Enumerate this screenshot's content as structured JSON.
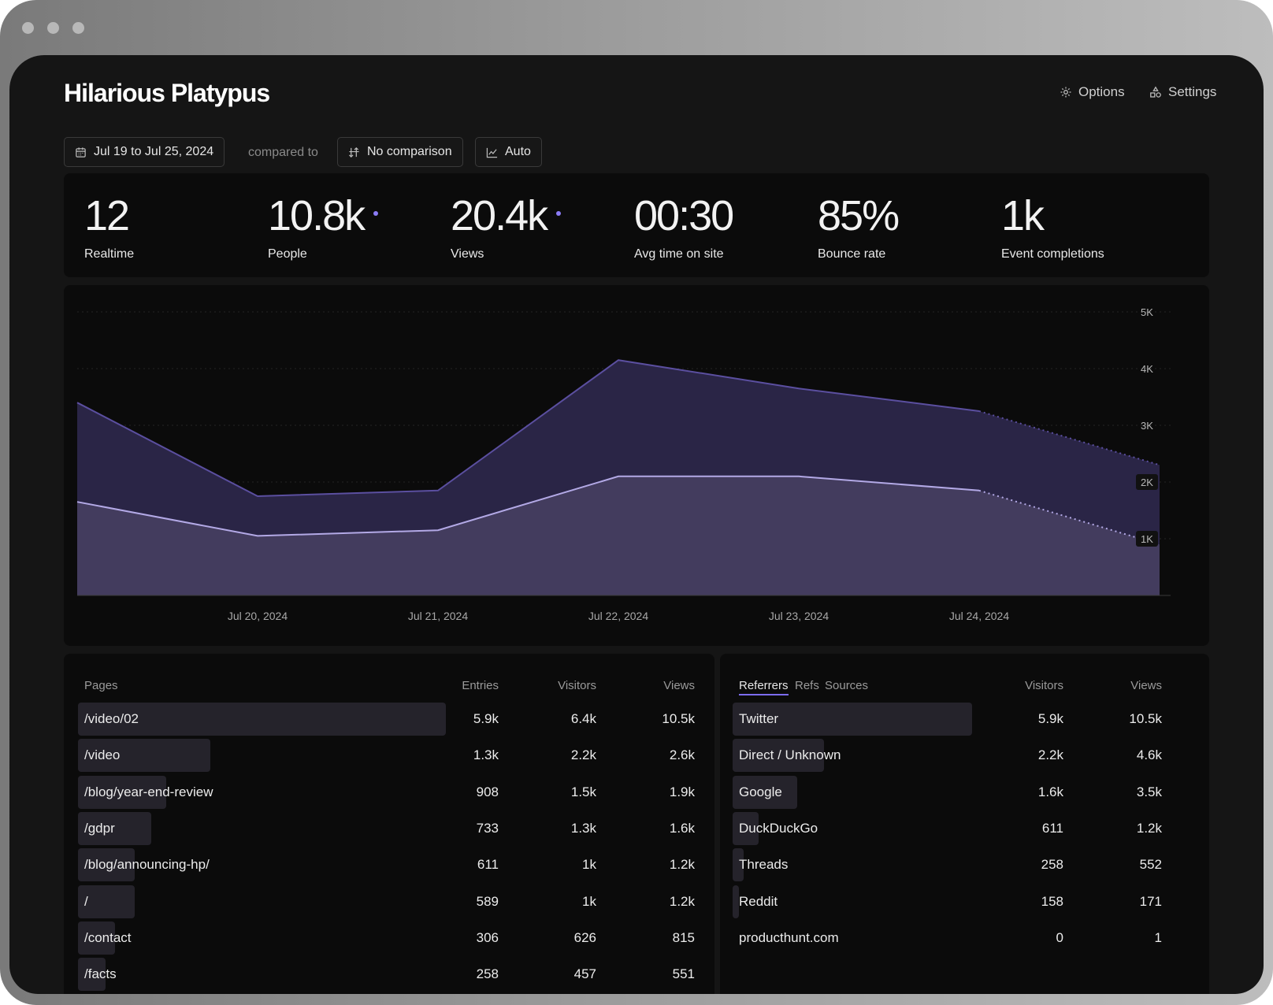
{
  "window": {
    "title": "Hilarious Platypus"
  },
  "header": {
    "options_label": "Options",
    "settings_label": "Settings"
  },
  "filters": {
    "date_range": "Jul 19 to Jul 25, 2024",
    "compared_to": "compared to",
    "comparison": "No comparison",
    "interval": "Auto"
  },
  "stats": [
    {
      "value": "12",
      "label": "Realtime",
      "marker": false
    },
    {
      "value": "10.8k",
      "label": "People",
      "marker": true
    },
    {
      "value": "20.4k",
      "label": "Views",
      "marker": true
    },
    {
      "value": "00:30",
      "label": "Avg time on site",
      "marker": false
    },
    {
      "value": "85%",
      "label": "Bounce rate",
      "marker": false
    },
    {
      "value": "1k",
      "label": "Event completions",
      "marker": false
    }
  ],
  "chart_data": {
    "type": "area",
    "x": [
      "Jul 19, 2024",
      "Jul 20, 2024",
      "Jul 21, 2024",
      "Jul 22, 2024",
      "Jul 23, 2024",
      "Jul 24, 2024",
      "Jul 25, 2024"
    ],
    "x_tick_labels": [
      "Jul 20, 2024",
      "Jul 21, 2024",
      "Jul 22, 2024",
      "Jul 23, 2024",
      "Jul 24, 2024"
    ],
    "series": [
      {
        "values": [
          3400,
          1750,
          1850,
          4150,
          3650,
          3250,
          2300
        ],
        "color": "#2a2546",
        "line": "#5b4fa0"
      },
      {
        "values": [
          1650,
          1050,
          1150,
          2100,
          2100,
          1850,
          900
        ],
        "color": "#433c5e",
        "line": "#b3a9e6"
      }
    ],
    "partial_from_index": 5,
    "y_ticks": [
      "5K",
      "4K",
      "3K",
      "2K",
      "1K"
    ],
    "y_tick_values": [
      5000,
      4000,
      3000,
      2000,
      1000
    ],
    "ylim": [
      0,
      5000
    ],
    "grid": true
  },
  "pages_table": {
    "headers": {
      "name": "Pages",
      "entries": "Entries",
      "visitors": "Visitors",
      "views": "Views"
    },
    "rows": [
      {
        "name": "/video/02",
        "entries": "5.9k",
        "visitors": "6.4k",
        "views": "10.5k",
        "share": 1.0
      },
      {
        "name": "/video",
        "entries": "1.3k",
        "visitors": "2.2k",
        "views": "2.6k",
        "share": 0.36
      },
      {
        "name": "/blog/year-end-review",
        "entries": "908",
        "visitors": "1.5k",
        "views": "1.9k",
        "share": 0.24
      },
      {
        "name": "/gdpr",
        "entries": "733",
        "visitors": "1.3k",
        "views": "1.6k",
        "share": 0.2
      },
      {
        "name": "/blog/announcing-hp/",
        "entries": "611",
        "visitors": "1k",
        "views": "1.2k",
        "share": 0.155
      },
      {
        "name": "/",
        "entries": "589",
        "visitors": "1k",
        "views": "1.2k",
        "share": 0.155
      },
      {
        "name": "/contact",
        "entries": "306",
        "visitors": "626",
        "views": "815",
        "share": 0.1
      },
      {
        "name": "/facts",
        "entries": "258",
        "visitors": "457",
        "views": "551",
        "share": 0.075
      }
    ]
  },
  "referrers_table": {
    "tabs": [
      "Referrers",
      "Refs",
      "Sources"
    ],
    "headers": {
      "visitors": "Visitors",
      "views": "Views"
    },
    "rows": [
      {
        "name": "Twitter",
        "visitors": "5.9k",
        "views": "10.5k",
        "share": 1.0
      },
      {
        "name": "Direct / Unknown",
        "visitors": "2.2k",
        "views": "4.6k",
        "share": 0.38
      },
      {
        "name": "Google",
        "visitors": "1.6k",
        "views": "3.5k",
        "share": 0.27
      },
      {
        "name": "DuckDuckGo",
        "visitors": "611",
        "views": "1.2k",
        "share": 0.11
      },
      {
        "name": "Threads",
        "visitors": "258",
        "views": "552",
        "share": 0.045
      },
      {
        "name": "Reddit",
        "visitors": "158",
        "views": "171",
        "share": 0.027
      },
      {
        "name": "producthunt.com",
        "visitors": "0",
        "views": "1",
        "share": 0.0
      }
    ]
  }
}
